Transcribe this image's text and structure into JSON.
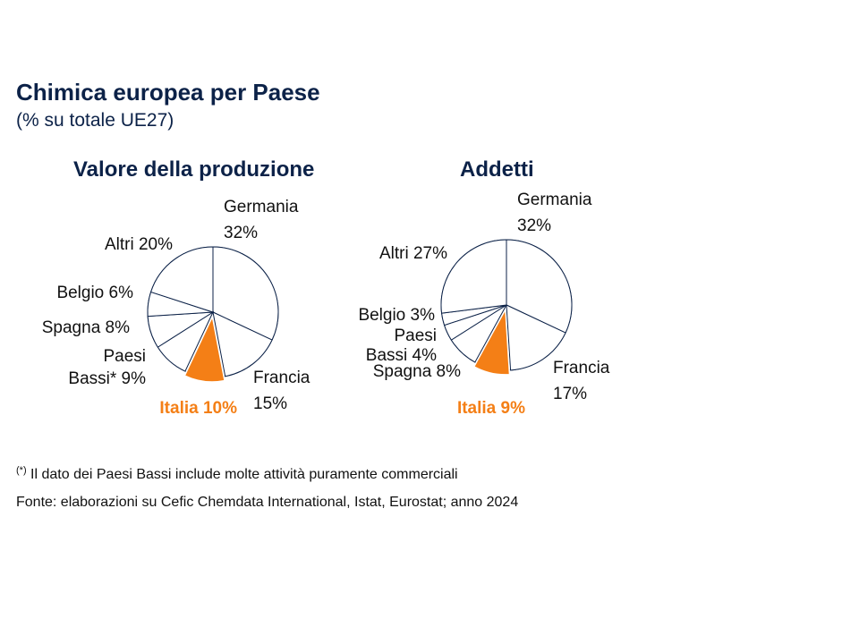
{
  "header": {
    "title": "Chimica europea per Paese",
    "subtitle": "(% su totale UE27)"
  },
  "chart_data": [
    {
      "type": "pie",
      "title": "Valore della produzione",
      "unit": "%",
      "slices": [
        {
          "name": "Germania",
          "value": 32,
          "label_lines": [
            "Germania",
            "32%"
          ],
          "highlight": false
        },
        {
          "name": "Francia",
          "value": 15,
          "label_lines": [
            "Francia",
            "15%"
          ],
          "highlight": false
        },
        {
          "name": "Italia",
          "value": 10,
          "label_lines": [
            "Italia 10%"
          ],
          "highlight": true
        },
        {
          "name": "Paesi Bassi*",
          "value": 9,
          "label_lines": [
            "Paesi",
            "Bassi* 9%"
          ],
          "highlight": false
        },
        {
          "name": "Spagna",
          "value": 8,
          "label_lines": [
            "Spagna 8%"
          ],
          "highlight": false
        },
        {
          "name": "Belgio",
          "value": 6,
          "label_lines": [
            "Belgio 6%"
          ],
          "highlight": false
        },
        {
          "name": "Altri",
          "value": 20,
          "label_lines": [
            "Altri 20%"
          ],
          "highlight": false
        }
      ]
    },
    {
      "type": "pie",
      "title": "Addetti",
      "unit": "%",
      "slices": [
        {
          "name": "Germania",
          "value": 32,
          "label_lines": [
            "Germania",
            "32%"
          ],
          "highlight": false
        },
        {
          "name": "Francia",
          "value": 17,
          "label_lines": [
            "Francia",
            "17%"
          ],
          "highlight": false
        },
        {
          "name": "Italia",
          "value": 9,
          "label_lines": [
            "Italia 9%"
          ],
          "highlight": true
        },
        {
          "name": "Spagna",
          "value": 8,
          "label_lines": [
            "Spagna 8%"
          ],
          "highlight": false
        },
        {
          "name": "Paesi Bassi",
          "value": 4,
          "label_lines": [
            "Paesi",
            "Bassi 4%"
          ],
          "highlight": false
        },
        {
          "name": "Belgio",
          "value": 3,
          "label_lines": [
            "Belgio 3%"
          ],
          "highlight": false
        },
        {
          "name": "Altri",
          "value": 27,
          "label_lines": [
            "Altri 27%"
          ],
          "highlight": false
        }
      ]
    }
  ],
  "colors": {
    "line": "#0c2248",
    "highlight": "#f47f16",
    "title": "#0c2248"
  },
  "footnotes": {
    "note_marker": "(*)",
    "note_text": " Il dato dei Paesi Bassi include molte attività puramente commerciali",
    "source": "Fonte: elaborazioni su Cefic Chemdata International, Istat, Eurostat; anno 2024"
  }
}
